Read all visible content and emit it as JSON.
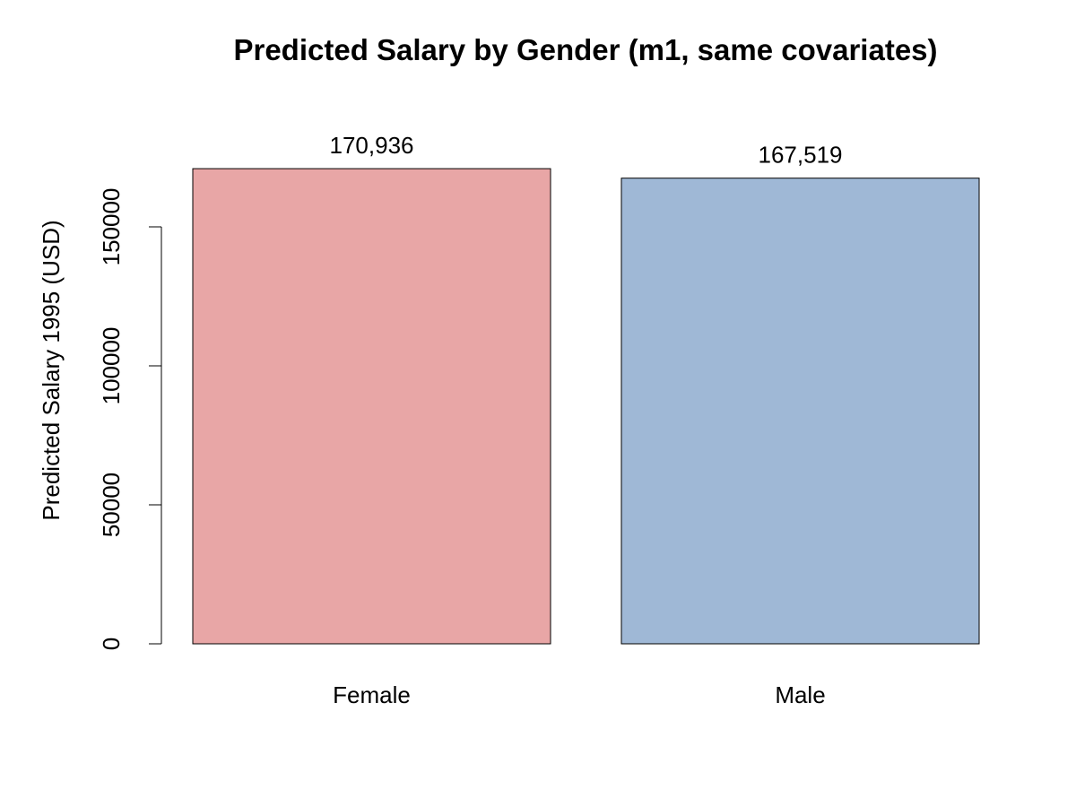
{
  "chart_data": {
    "type": "bar",
    "title": "Predicted Salary by Gender (m1, same covariates)",
    "xlabel": "",
    "ylabel": "Predicted Salary 1995 (USD)",
    "categories": [
      "Female",
      "Male"
    ],
    "values": [
      170936,
      167519
    ],
    "value_labels": [
      "170,936",
      "167,519"
    ],
    "colors": [
      "#e8a6a6",
      "#9fb8d6"
    ],
    "yticks": [
      0,
      50000,
      100000,
      150000
    ],
    "ytick_labels": [
      "0",
      "50000",
      "100000",
      "150000"
    ],
    "ylim": [
      0,
      180000
    ],
    "grid": false,
    "legend": "none"
  }
}
